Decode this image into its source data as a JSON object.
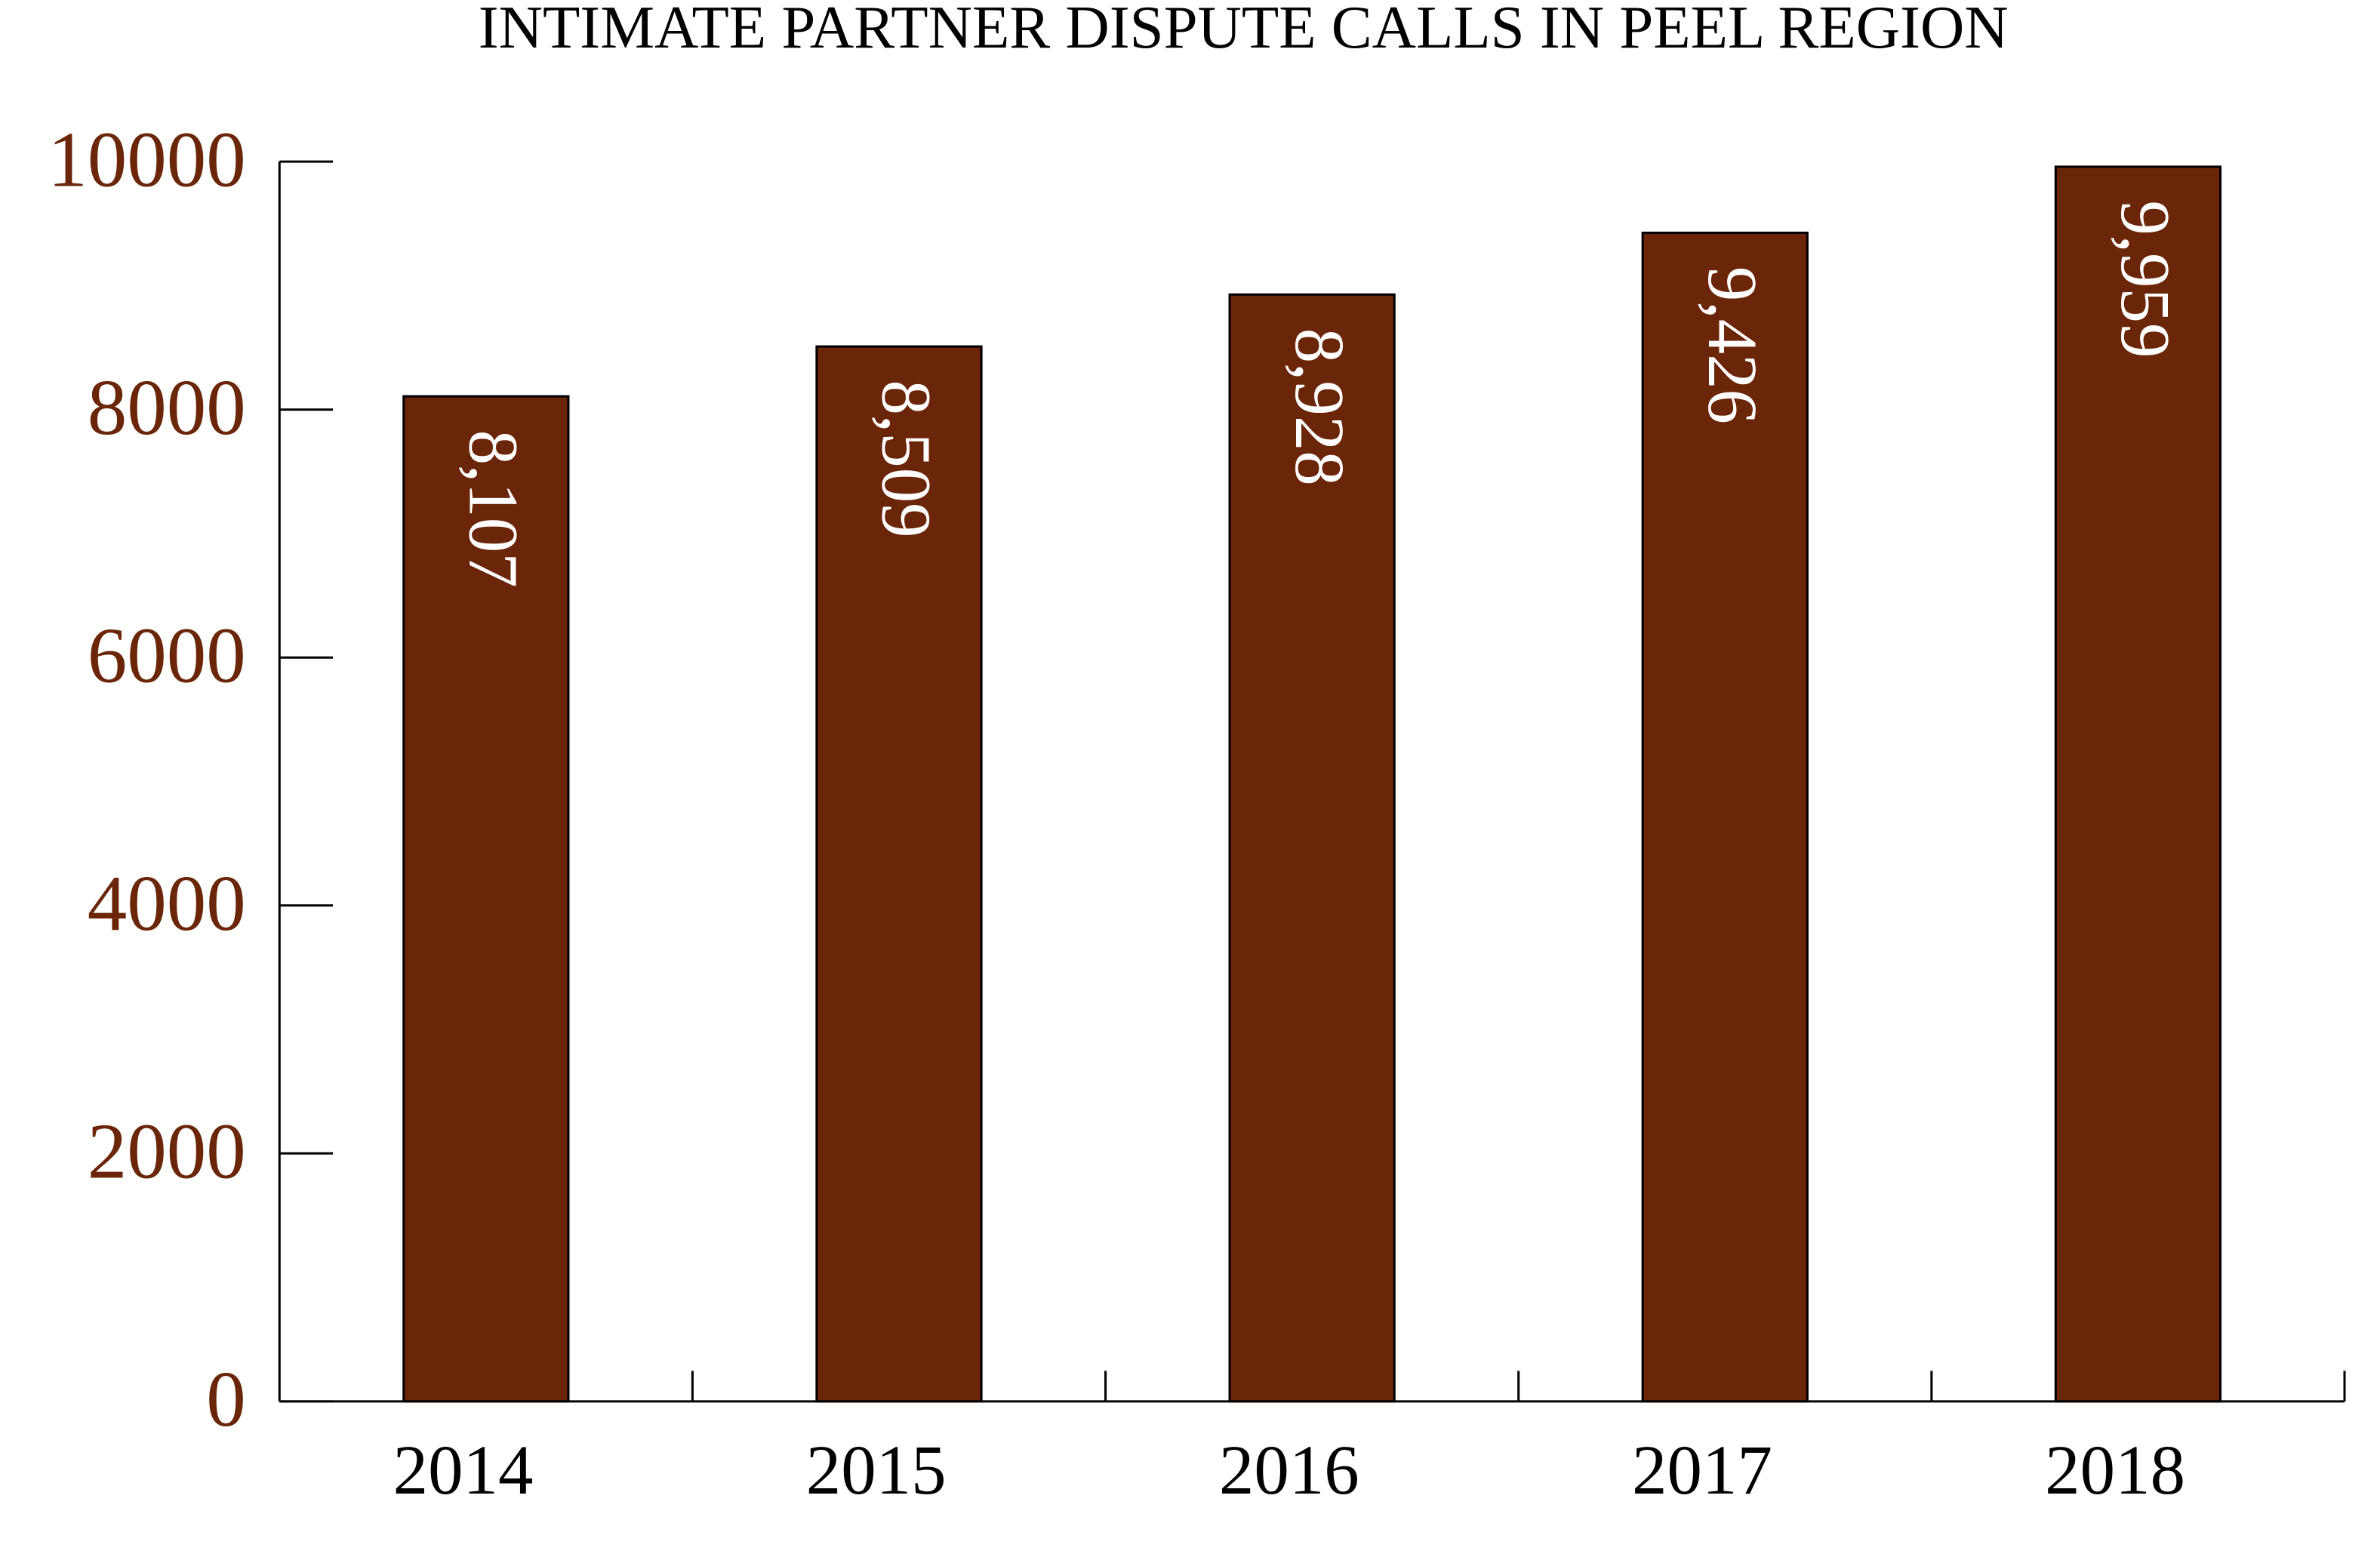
{
  "chart_data": {
    "type": "bar",
    "title": "INTIMATE PARTNER DISPUTE CALLS IN PEEL REGION",
    "categories": [
      "2014",
      "2015",
      "2016",
      "2017",
      "2018"
    ],
    "values": [
      8107,
      8509,
      8928,
      9426,
      9959
    ],
    "value_labels": [
      "8,107",
      "8,509",
      "8,928",
      "9,426",
      "9,959"
    ],
    "color": "#6b2508",
    "ylim": [
      0,
      10000
    ],
    "yticks": [
      0,
      2000,
      4000,
      6000,
      8000,
      10000
    ],
    "grid": false
  }
}
